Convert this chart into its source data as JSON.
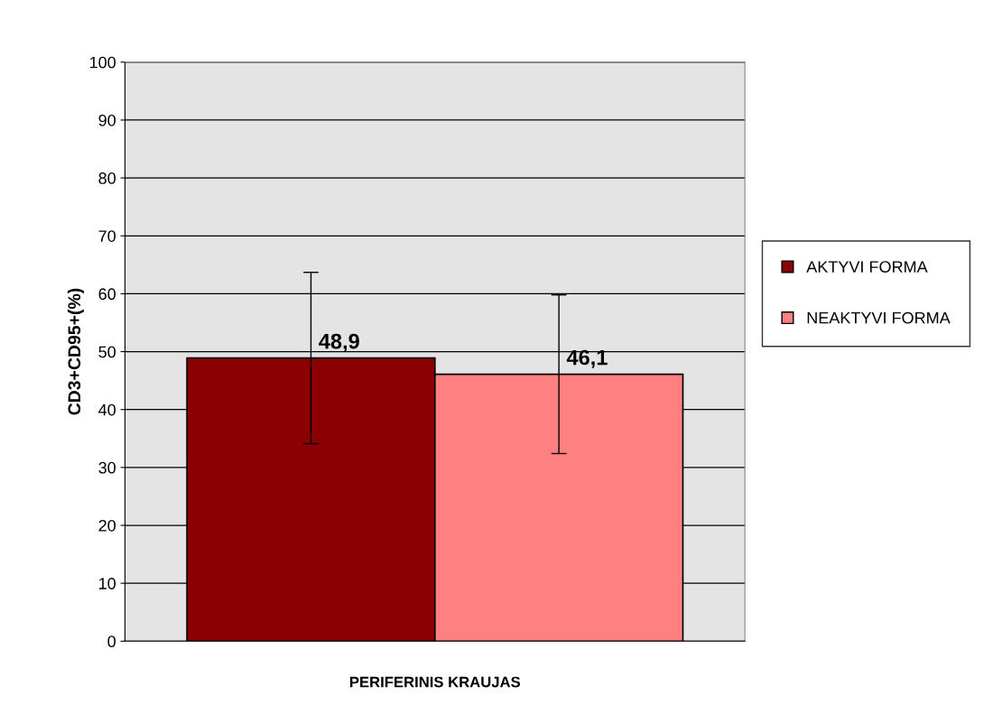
{
  "chart_data": {
    "type": "bar",
    "ylabel": "CD3+CD95+(%)",
    "categories": [
      "PERIFERINIS KRAUJAS"
    ],
    "series": [
      {
        "name": "AKTYVI FORMA",
        "color": "#8b0000",
        "values": [
          48.9
        ],
        "errors": [
          14.8
        ],
        "value_labels": [
          "48,9"
        ]
      },
      {
        "name": "NEAKTYVI FORMA",
        "color": "#ff8080",
        "values": [
          46.1
        ],
        "errors": [
          13.7
        ],
        "value_labels": [
          "46,1"
        ]
      }
    ],
    "ylim": [
      0,
      100
    ],
    "yticks": [
      0,
      10,
      20,
      30,
      40,
      50,
      60,
      70,
      80,
      90,
      100
    ],
    "grid": "y",
    "legend": "right"
  }
}
